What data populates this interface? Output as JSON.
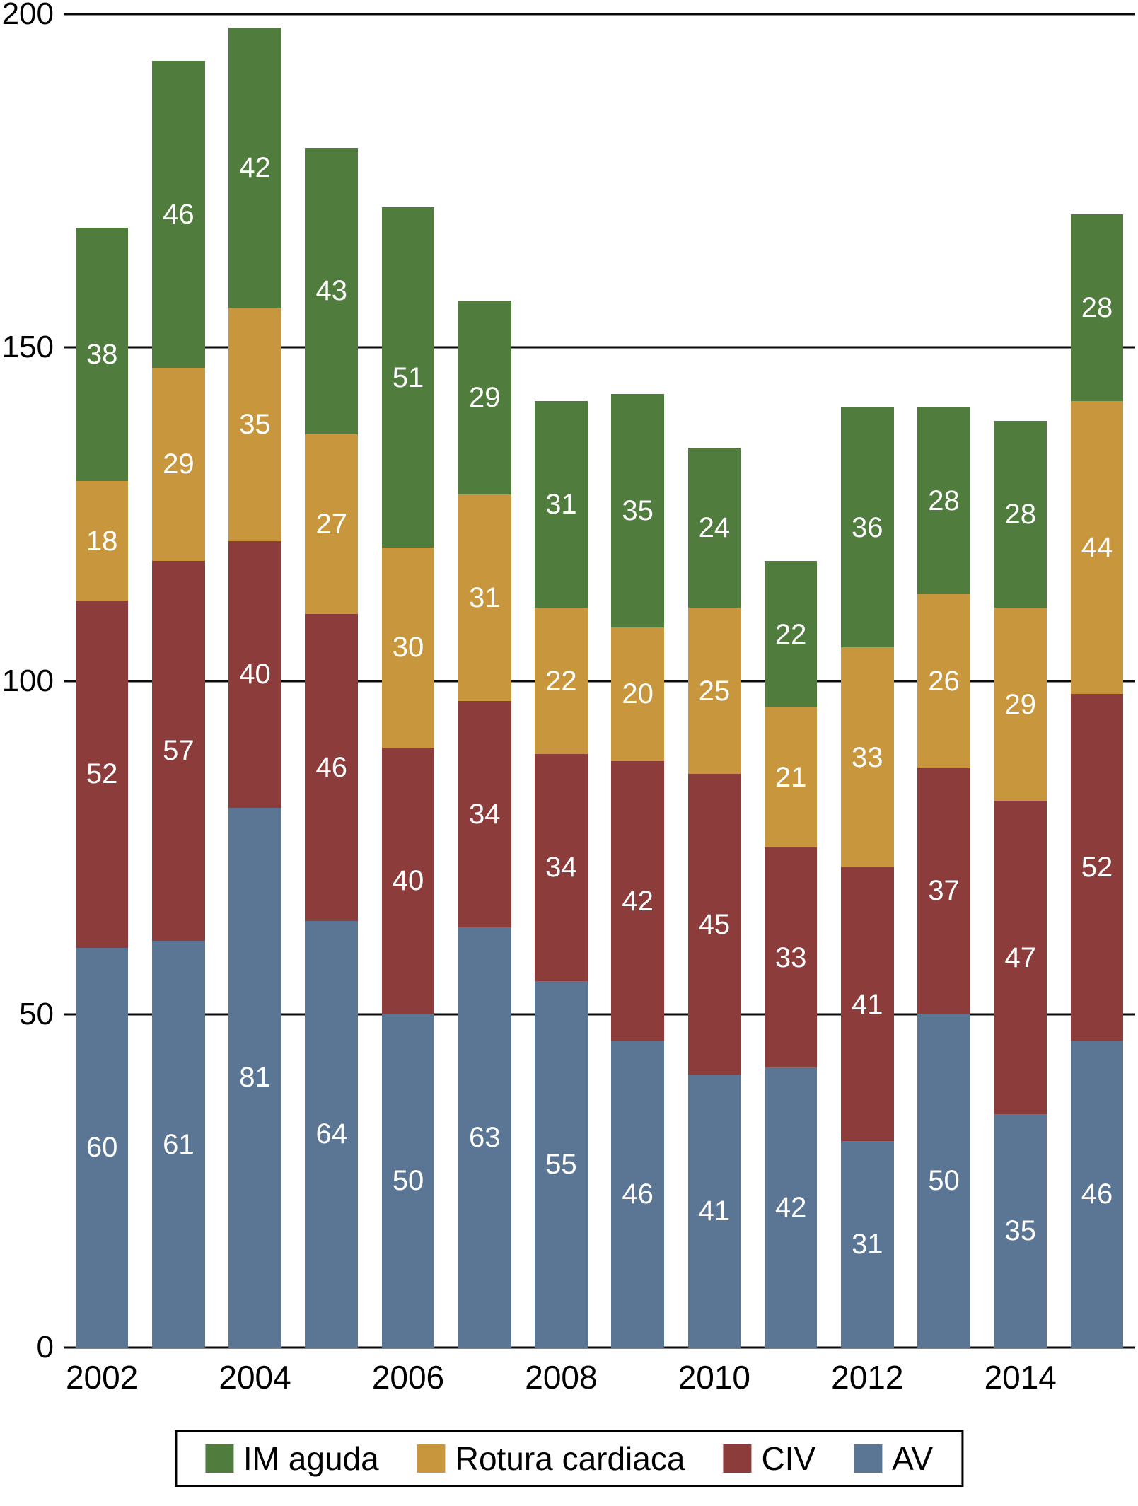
{
  "figure": {
    "background": "#ffffff",
    "axis_color": "#0a0a0a",
    "label_text_color": "#ffffff"
  },
  "chart_data": {
    "type": "bar",
    "stacked": true,
    "title": "",
    "xlabel": "",
    "ylabel": "",
    "grid": true,
    "ylim": [
      0,
      200
    ],
    "yticks": [
      0,
      50,
      100,
      150,
      200
    ],
    "categories": [
      "2002",
      "2003",
      "2004",
      "2005",
      "2006",
      "2007",
      "2008",
      "2009",
      "2010",
      "2011",
      "2012",
      "2013",
      "2014",
      "2015"
    ],
    "x_tick_labels": [
      "2002",
      "",
      "2004",
      "",
      "2006",
      "",
      "2008",
      "",
      "2010",
      "",
      "2012",
      "",
      "2014",
      ""
    ],
    "series": [
      {
        "name": "AV",
        "color": "#5b7695",
        "values": [
          60,
          61,
          81,
          64,
          50,
          63,
          55,
          46,
          41,
          42,
          31,
          50,
          35,
          46
        ]
      },
      {
        "name": "CIV",
        "color": "#8d3c3c",
        "values": [
          52,
          57,
          40,
          46,
          40,
          34,
          34,
          42,
          45,
          33,
          41,
          37,
          47,
          52
        ]
      },
      {
        "name": "Rotura cardiaca",
        "color": "#c8973d",
        "values": [
          18,
          29,
          35,
          27,
          30,
          31,
          22,
          20,
          25,
          21,
          33,
          26,
          29,
          44
        ]
      },
      {
        "name": "IM aguda",
        "color": "#507c3e",
        "values": [
          38,
          46,
          42,
          43,
          51,
          29,
          31,
          35,
          24,
          22,
          36,
          28,
          28,
          28
        ]
      }
    ],
    "legend": [
      "IM aguda",
      "Rotura cardiaca",
      "CIV",
      "AV"
    ],
    "legend_position": "bottom"
  }
}
